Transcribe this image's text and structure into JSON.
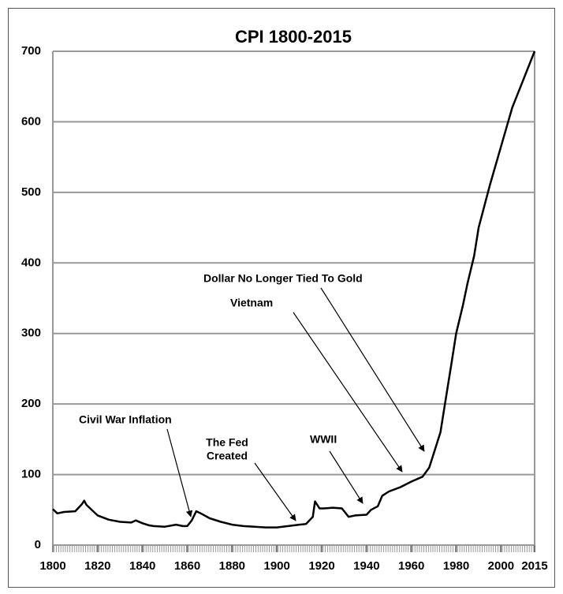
{
  "chart_data": {
    "type": "line",
    "title": "CPI 1800-2015",
    "x": [
      1800,
      1802,
      1805,
      1810,
      1813,
      1814,
      1815,
      1818,
      1820,
      1825,
      1830,
      1835,
      1837,
      1840,
      1843,
      1845,
      1850,
      1855,
      1858,
      1860,
      1862,
      1864,
      1866,
      1870,
      1875,
      1880,
      1885,
      1890,
      1895,
      1900,
      1905,
      1910,
      1913,
      1916,
      1917,
      1919,
      1921,
      1925,
      1929,
      1932,
      1935,
      1940,
      1942,
      1945,
      1947,
      1950,
      1955,
      1960,
      1965,
      1968,
      1970,
      1973,
      1975,
      1978,
      1980,
      1983,
      1985,
      1988,
      1990,
      1995,
      2000,
      2005,
      2010,
      2015
    ],
    "series": [
      {
        "name": "CPI",
        "color": "#000000",
        "values": [
          51,
          45,
          47,
          48,
          58,
          63,
          57,
          48,
          42,
          36,
          33,
          32,
          35,
          31,
          28,
          27,
          26,
          29,
          27,
          27,
          35,
          48,
          45,
          38,
          33,
          29,
          27,
          26,
          25,
          25,
          27,
          29,
          30,
          40,
          62,
          52,
          52,
          53,
          52,
          40,
          42,
          43,
          50,
          55,
          70,
          76,
          82,
          90,
          97,
          110,
          130,
          160,
          200,
          260,
          300,
          340,
          370,
          410,
          450,
          510,
          565,
          620,
          660,
          700
        ]
      }
    ],
    "xlim": [
      1800,
      2015
    ],
    "xticks": [
      1800,
      1820,
      1840,
      1860,
      1880,
      1900,
      1920,
      1940,
      1960,
      1980,
      2000,
      2015
    ],
    "ylim": [
      0,
      700
    ],
    "yticks": [
      0,
      100,
      200,
      300,
      400,
      500,
      600,
      700
    ],
    "grid": true,
    "annotations": [
      {
        "lines": [
          "Civil War Inflation"
        ]
      },
      {
        "lines": [
          "The Fed",
          "Created"
        ]
      },
      {
        "lines": [
          "WWII"
        ]
      },
      {
        "lines": [
          "Vietnam"
        ]
      },
      {
        "lines": [
          "Dollar No Longer Tied To Gold"
        ]
      }
    ]
  }
}
